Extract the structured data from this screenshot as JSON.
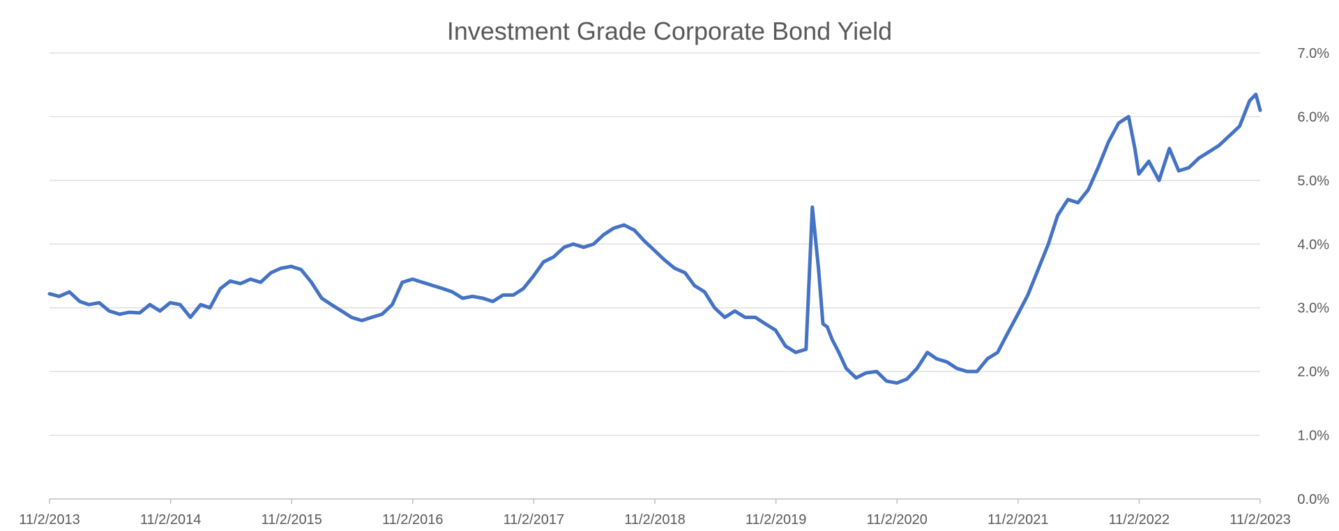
{
  "chart_data": {
    "type": "line",
    "title": "Investment Grade Corporate Bond Yield",
    "xlabel": "",
    "ylabel": "",
    "x_tick_labels": [
      "11/2/2013",
      "11/2/2014",
      "11/2/2015",
      "11/2/2016",
      "11/2/2017",
      "11/2/2018",
      "11/2/2019",
      "11/2/2020",
      "11/2/2021",
      "11/2/2022",
      "11/2/2023"
    ],
    "y_tick_labels": [
      "0.0%",
      "1.0%",
      "2.0%",
      "3.0%",
      "4.0%",
      "5.0%",
      "6.0%",
      "7.0%"
    ],
    "y_ticks": [
      0,
      1,
      2,
      3,
      4,
      5,
      6,
      7
    ],
    "ylim": [
      0,
      7
    ],
    "xlim": [
      "2013-11-02",
      "2023-11-02"
    ],
    "y_axis_position": "right",
    "grid": true,
    "legend": "none",
    "line_color": "#4472c4",
    "series": [
      {
        "x": [
          "2013-11-02",
          "2013-12-01",
          "2014-01-01",
          "2014-02-01",
          "2014-03-01",
          "2014-04-01",
          "2014-05-01",
          "2014-06-01",
          "2014-07-01",
          "2014-08-01",
          "2014-09-01",
          "2014-10-01",
          "2014-11-01",
          "2014-12-01",
          "2015-01-01",
          "2015-02-01",
          "2015-03-01",
          "2015-04-01",
          "2015-05-01",
          "2015-06-01",
          "2015-07-01",
          "2015-08-01",
          "2015-09-01",
          "2015-10-01",
          "2015-11-01",
          "2015-12-01",
          "2016-01-01",
          "2016-02-01",
          "2016-03-01",
          "2016-04-01",
          "2016-05-01",
          "2016-06-01",
          "2016-07-01",
          "2016-08-01",
          "2016-09-01",
          "2016-10-01",
          "2016-11-01",
          "2016-12-01",
          "2017-01-01",
          "2017-02-01",
          "2017-03-01",
          "2017-04-01",
          "2017-05-01",
          "2017-06-01",
          "2017-07-01",
          "2017-08-01",
          "2017-09-01",
          "2017-10-01",
          "2017-11-01",
          "2017-12-01",
          "2018-01-01",
          "2018-02-01",
          "2018-03-01",
          "2018-04-01",
          "2018-05-01",
          "2018-06-01",
          "2018-07-01",
          "2018-08-01",
          "2018-09-01",
          "2018-10-01",
          "2018-11-01",
          "2018-12-01",
          "2019-01-01",
          "2019-02-01",
          "2019-03-01",
          "2019-04-01",
          "2019-05-01",
          "2019-06-01",
          "2019-07-01",
          "2019-08-01",
          "2019-09-01",
          "2019-10-01",
          "2019-11-01",
          "2019-12-01",
          "2020-01-01",
          "2020-02-01",
          "2020-02-20",
          "2020-03-10",
          "2020-03-23",
          "2020-04-05",
          "2020-04-20",
          "2020-05-10",
          "2020-06-01",
          "2020-07-01",
          "2020-08-01",
          "2020-09-01",
          "2020-10-01",
          "2020-11-01",
          "2020-12-01",
          "2021-01-01",
          "2021-02-01",
          "2021-03-01",
          "2021-04-01",
          "2021-05-01",
          "2021-06-01",
          "2021-07-01",
          "2021-08-01",
          "2021-09-01",
          "2021-10-01",
          "2021-11-01",
          "2021-12-01",
          "2022-01-01",
          "2022-02-01",
          "2022-03-01",
          "2022-04-01",
          "2022-05-01",
          "2022-06-01",
          "2022-07-01",
          "2022-08-01",
          "2022-09-01",
          "2022-10-01",
          "2022-10-20",
          "2022-11-01",
          "2022-12-01",
          "2023-01-01",
          "2023-02-01",
          "2023-03-01",
          "2023-04-01",
          "2023-05-01",
          "2023-06-01",
          "2023-07-01",
          "2023-08-01",
          "2023-09-01",
          "2023-10-01",
          "2023-10-20",
          "2023-11-02"
        ],
        "values": [
          3.22,
          3.18,
          3.25,
          3.1,
          3.05,
          3.08,
          2.95,
          2.9,
          2.93,
          2.92,
          3.05,
          2.95,
          3.08,
          3.05,
          2.85,
          3.05,
          3.0,
          3.3,
          3.42,
          3.38,
          3.45,
          3.4,
          3.55,
          3.62,
          3.65,
          3.6,
          3.4,
          3.15,
          3.05,
          2.95,
          2.85,
          2.8,
          2.85,
          2.9,
          3.05,
          3.4,
          3.45,
          3.4,
          3.35,
          3.3,
          3.25,
          3.15,
          3.18,
          3.15,
          3.1,
          3.2,
          3.2,
          3.3,
          3.5,
          3.72,
          3.8,
          3.95,
          4.0,
          3.95,
          4.0,
          4.15,
          4.25,
          4.3,
          4.22,
          4.05,
          3.9,
          3.75,
          3.62,
          3.55,
          3.35,
          3.25,
          3.0,
          2.85,
          2.95,
          2.85,
          2.85,
          2.75,
          2.65,
          2.4,
          2.3,
          2.35,
          4.58,
          3.6,
          2.75,
          2.7,
          2.5,
          2.3,
          2.05,
          1.9,
          1.98,
          2.0,
          1.85,
          1.82,
          1.88,
          2.05,
          2.3,
          2.2,
          2.15,
          2.05,
          2.0,
          2.0,
          2.2,
          2.3,
          2.6,
          2.9,
          3.2,
          3.6,
          4.0,
          4.45,
          4.7,
          4.65,
          4.85,
          5.2,
          5.6,
          5.9,
          6.0,
          5.5,
          5.1,
          5.3,
          5.0,
          5.5,
          5.15,
          5.2,
          5.35,
          5.45,
          5.55,
          5.7,
          5.85,
          6.25,
          6.35,
          6.1
        ]
      }
    ]
  }
}
